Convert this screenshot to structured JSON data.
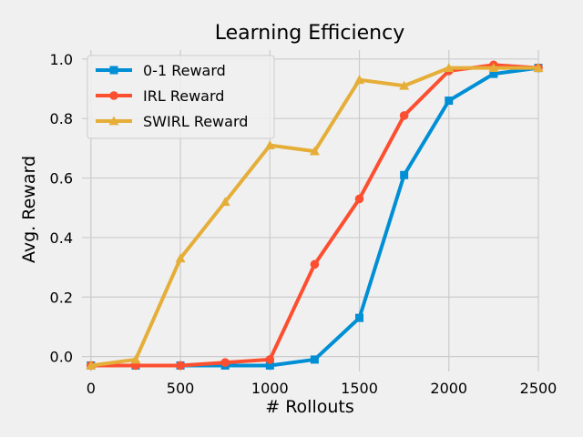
{
  "chart_data": {
    "type": "line",
    "title": "Learning Efficiency",
    "xlabel": "# Rollouts",
    "ylabel": "Avg. Reward",
    "xlim": [
      -50,
      2500
    ],
    "ylim": [
      -0.05,
      1.03
    ],
    "xticks": [
      0,
      500,
      1000,
      1500,
      2000,
      2500
    ],
    "yticks": [
      0.0,
      0.2,
      0.4,
      0.6,
      0.8,
      1.0
    ],
    "xtick_labels": [
      "0",
      "500",
      "1000",
      "1500",
      "2000",
      "2500"
    ],
    "ytick_labels": [
      "0.0",
      "0.2",
      "0.4",
      "0.6",
      "0.8",
      "1.0"
    ],
    "grid": true,
    "legend_position": "top-left",
    "x": [
      0,
      250,
      500,
      750,
      1000,
      1250,
      1500,
      1750,
      2000,
      2250,
      2500
    ],
    "series": [
      {
        "name": "0-1 Reward",
        "color": "#008fd5",
        "marker": "square",
        "values": [
          -0.03,
          -0.03,
          -0.03,
          -0.03,
          -0.03,
          -0.01,
          0.13,
          0.61,
          0.86,
          0.95,
          0.97
        ]
      },
      {
        "name": "IRL Reward",
        "color": "#fc4f30",
        "marker": "circle",
        "values": [
          -0.03,
          -0.03,
          -0.03,
          -0.02,
          -0.01,
          0.31,
          0.53,
          0.81,
          0.96,
          0.98,
          0.97
        ]
      },
      {
        "name": "SWIRL Reward",
        "color": "#e5ae38",
        "marker": "triangle",
        "values": [
          -0.03,
          -0.01,
          0.33,
          0.52,
          0.71,
          0.69,
          0.93,
          0.91,
          0.97,
          0.97,
          0.97
        ]
      }
    ]
  }
}
